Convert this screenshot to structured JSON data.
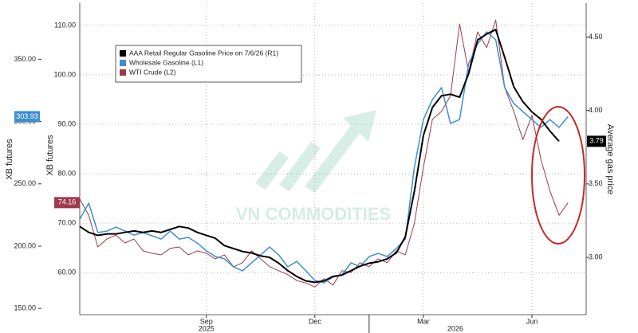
{
  "chart_data": {
    "type": "line",
    "legend_items_note_free": null,
    "ylabel": "XB futures",
    "y3label": "XB futures",
    "y2label": "Average gas price",
    "watermark": "VN COMMODITIES",
    "years": [
      "2025",
      "2026"
    ],
    "xlim": [
      5.5,
      19.5
    ],
    "xticks": [
      {
        "value": 9,
        "label": "Sep"
      },
      {
        "value": 12,
        "label": "Dec"
      },
      {
        "value": 15,
        "label": "Mar"
      },
      {
        "value": 18,
        "label": "Jun"
      }
    ],
    "ylim": [
      145,
      395
    ],
    "yticks": [
      {
        "value": 150,
        "label": "150.00"
      },
      {
        "value": 200,
        "label": "200.00"
      },
      {
        "value": 250,
        "label": "250.00"
      },
      {
        "value": 300,
        "label": "300.00"
      },
      {
        "value": 350,
        "label": "350.00"
      }
    ],
    "y3lim": [
      51.5,
      114.5
    ],
    "y3ticks": [
      {
        "value": 60,
        "label": "60.00"
      },
      {
        "value": 70,
        "label": "70.00"
      },
      {
        "value": 80,
        "label": "80.00"
      },
      {
        "value": 90,
        "label": "90.00"
      },
      {
        "value": 100,
        "label": "100.00"
      },
      {
        "value": 110,
        "label": "110.00"
      }
    ],
    "y2lim": [
      2.61,
      4.73
    ],
    "y2ticks": [
      {
        "value": 3,
        "label": "3.00"
      },
      {
        "value": 3.5,
        "label": "3.50"
      },
      {
        "value": 4,
        "label": "4.00"
      },
      {
        "value": 4.5,
        "label": "4.50"
      }
    ],
    "grid": true,
    "x": [
      5.5,
      5.75,
      6.0,
      6.25,
      6.5,
      6.75,
      7.0,
      7.25,
      7.5,
      7.75,
      8.0,
      8.25,
      8.5,
      8.75,
      9.0,
      9.25,
      9.5,
      9.75,
      10.0,
      10.25,
      10.5,
      10.75,
      11.0,
      11.25,
      11.5,
      11.75,
      12.0,
      12.25,
      12.5,
      12.75,
      13.0,
      13.25,
      13.5,
      13.75,
      14.0,
      14.25,
      14.5,
      14.75,
      15.0,
      15.25,
      15.5,
      15.75,
      16.0,
      16.25,
      16.5,
      16.75,
      17.0,
      17.25,
      17.5,
      17.75,
      18.0,
      18.25,
      18.5,
      18.75,
      19.0
    ],
    "series": [
      {
        "name": "AAA Retail Regular Gasoline Price on 7/6/26 (R1)",
        "color": "#000000",
        "axis": "y2",
        "width": 2,
        "values": [
          3.21,
          3.17,
          3.15,
          3.16,
          3.16,
          3.17,
          3.18,
          3.17,
          3.18,
          3.17,
          3.19,
          3.21,
          3.2,
          3.17,
          3.15,
          3.13,
          3.08,
          3.06,
          3.04,
          3.03,
          3.01,
          3.0,
          2.96,
          2.91,
          2.87,
          2.84,
          2.83,
          2.84,
          2.87,
          2.88,
          2.91,
          2.94,
          2.96,
          2.97,
          2.99,
          3.03,
          3.14,
          3.45,
          3.83,
          4.02,
          4.1,
          4.11,
          4.09,
          4.25,
          4.48,
          4.52,
          4.55,
          4.36,
          4.16,
          4.06,
          3.99,
          3.94,
          3.86,
          3.79,
          null
        ]
      },
      {
        "name": "Wholesale Gasoline (L1)",
        "color": "#3d8fd1",
        "axis": "y",
        "width": 1.5,
        "values": [
          221.7,
          234.5,
          210.9,
          212.1,
          215.3,
          212.1,
          208.9,
          210.9,
          208.3,
          205.7,
          212.1,
          205.7,
          207.0,
          202.5,
          196.2,
          191.7,
          189.8,
          183.4,
          180.2,
          186.6,
          193.0,
          199.3,
          193.0,
          183.4,
          187.8,
          180.2,
          172.5,
          170.6,
          175.1,
          177.0,
          186.6,
          183.4,
          191.7,
          194.2,
          191.7,
          198.1,
          205.7,
          263.3,
          301.6,
          317.6,
          327.2,
          298.5,
          301.6,
          346.4,
          362.4,
          372.0,
          365.6,
          327.2,
          314.4,
          308.0,
          301.6,
          295.3,
          301.6,
          295.3,
          303.93
        ]
      },
      {
        "name": "WTI Crude (L2)",
        "color": "#9e3a4d",
        "axis": "y3",
        "width": 1,
        "values": [
          74.9,
          71.6,
          65.2,
          66.8,
          67.6,
          66.0,
          66.8,
          64.4,
          63.9,
          63.6,
          64.9,
          65.2,
          63.6,
          64.4,
          63.9,
          62.8,
          63.6,
          61.2,
          62.0,
          64.4,
          62.8,
          61.2,
          60.4,
          59.6,
          58.4,
          57.9,
          57.1,
          58.8,
          57.5,
          60.4,
          60.0,
          62.0,
          61.2,
          62.8,
          62.0,
          64.4,
          63.6,
          70.0,
          81.3,
          91.0,
          92.6,
          95.8,
          110.3,
          100.6,
          108.7,
          105.5,
          111.1,
          97.4,
          92.6,
          86.9,
          91.8,
          82.9,
          76.5,
          71.6,
          74.16
        ]
      }
    ]
  }
}
